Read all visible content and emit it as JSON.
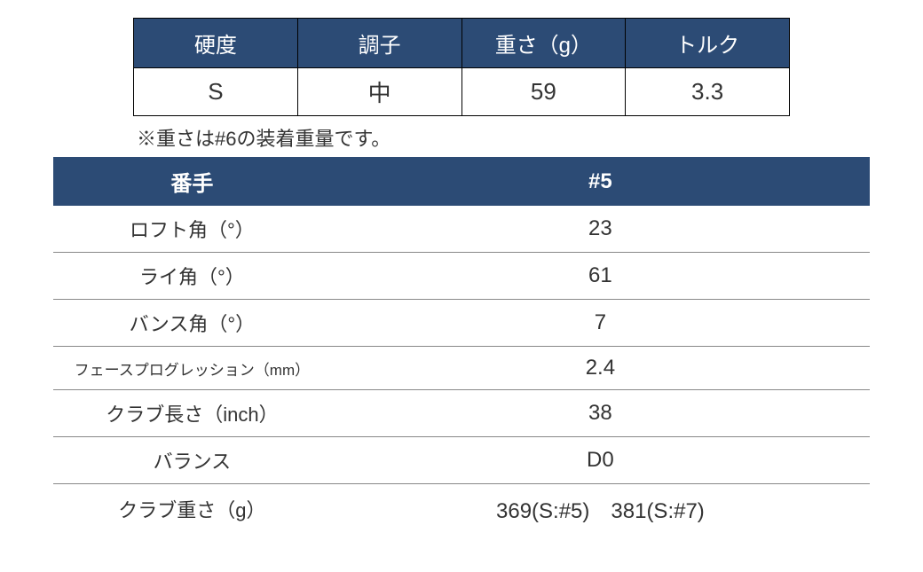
{
  "shaft_table": {
    "header_bg": "#2c4b75",
    "header_color": "#ffffff",
    "border_color": "#000000",
    "cell_bg": "#ffffff",
    "cell_color": "#333333",
    "columns": [
      "硬度",
      "調子",
      "重さ（g）",
      "トルク"
    ],
    "row": [
      "S",
      "中",
      "59",
      "3.3"
    ]
  },
  "note": "※重さは#6の装着重量です。",
  "spec_table": {
    "header_bg": "#2c4b75",
    "header_color": "#ffffff",
    "border_color": "#888888",
    "columns": [
      "番手",
      "#5"
    ],
    "rows": [
      {
        "label": "ロフト角（°）",
        "value": "23",
        "small": false
      },
      {
        "label": "ライ角（°）",
        "value": "61",
        "small": false
      },
      {
        "label": "バンス角（°）",
        "value": "7",
        "small": false
      },
      {
        "label": "フェースプログレッション（mm）",
        "value": "2.4",
        "small": true
      },
      {
        "label": "クラブ長さ（inch）",
        "value": "38",
        "small": false
      },
      {
        "label": "バランス",
        "value": "D0",
        "small": false
      },
      {
        "label": "クラブ重さ（g）",
        "value": "369(S:#5)　381(S:#7)",
        "small": false
      }
    ]
  }
}
